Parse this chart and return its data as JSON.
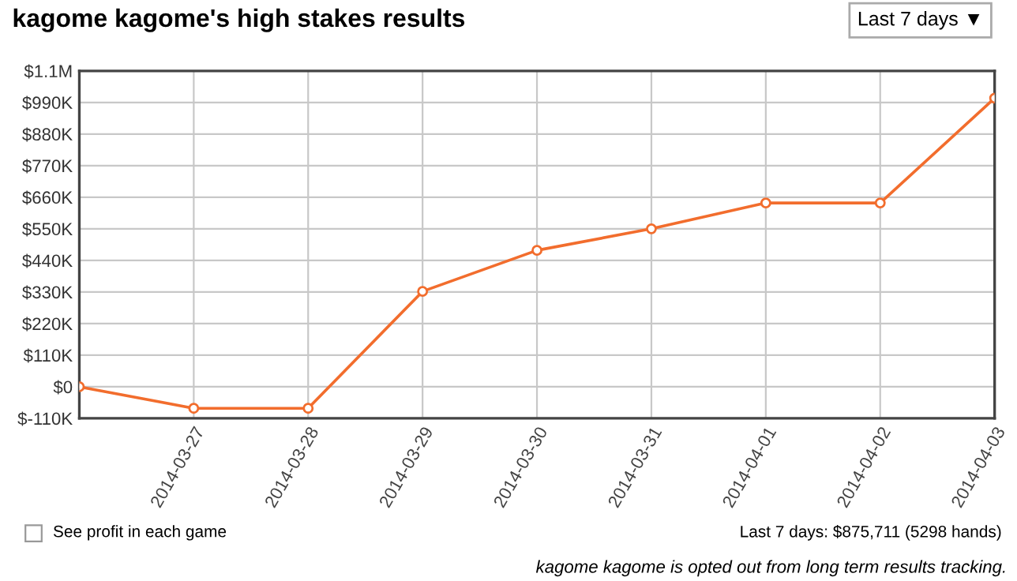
{
  "chart_data": {
    "type": "line",
    "title": "kagome kagome's high stakes results",
    "x": [
      "2014-03-26",
      "2014-03-27",
      "2014-03-28",
      "2014-03-29",
      "2014-03-30",
      "2014-03-31",
      "2014-04-01",
      "2014-04-02",
      "2014-04-03"
    ],
    "series": [
      {
        "color": "#f26d2d",
        "values": [
          0,
          -75000,
          -75000,
          332000,
          475000,
          550000,
          640000,
          640000,
          1005000
        ]
      }
    ],
    "marker": "circle",
    "line_style": "solid",
    "grid": true,
    "xlim": [
      "2014-03-26",
      "2014-04-03"
    ],
    "xticks": [
      "2014-03-27",
      "2014-03-28",
      "2014-03-29",
      "2014-03-30",
      "2014-03-31",
      "2014-04-01",
      "2014-04-02",
      "2014-04-03"
    ],
    "ylim": [
      -110000,
      1100000
    ],
    "yticks": [
      {
        "value": -110000,
        "label": "$-110K"
      },
      {
        "value": 0,
        "label": "$0"
      },
      {
        "value": 110000,
        "label": "$110K"
      },
      {
        "value": 220000,
        "label": "$220K"
      },
      {
        "value": 330000,
        "label": "$330K"
      },
      {
        "value": 440000,
        "label": "$440K"
      },
      {
        "value": 550000,
        "label": "$550K"
      },
      {
        "value": 660000,
        "label": "$660K"
      },
      {
        "value": 770000,
        "label": "$770K"
      },
      {
        "value": 880000,
        "label": "$880K"
      },
      {
        "value": 990000,
        "label": "$990K"
      },
      {
        "value": 1100000,
        "label": "$1.1M"
      }
    ],
    "annotations": [
      "Last 7 days ▼",
      "See profit in each game",
      "Last 7 days: $875,711 (5298 hands)",
      "kagome kagome is opted out from long term results tracking."
    ]
  }
}
